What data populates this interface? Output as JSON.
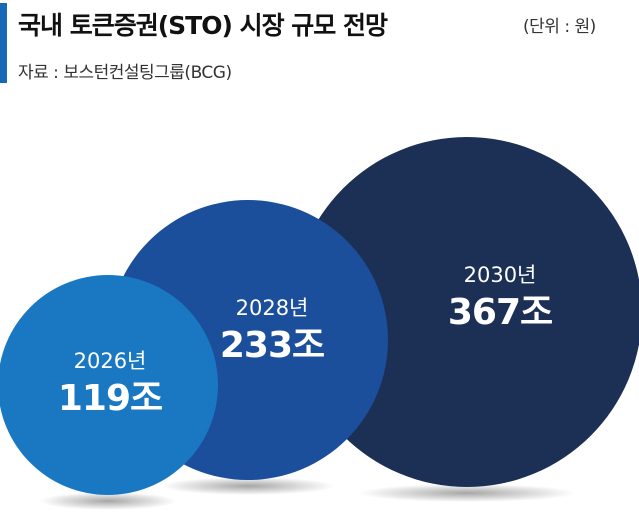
{
  "header": {
    "title": "국내 토큰증권(STO) 시장 규모 전망",
    "unit": "(단위 : 원)",
    "source": "자료 : 보스턴컨설팅그룹(BCG)"
  },
  "colors": {
    "accent": "#1769b7",
    "bubble_2026": "#1a78c2",
    "bubble_2028": "#1b4e9b",
    "bubble_2030": "#1c2f55"
  },
  "chart_data": {
    "type": "bubble",
    "title": "국내 토큰증권(STO) 시장 규모 전망",
    "unit": "(단위 : 원)",
    "categories": [
      "2026년",
      "2028년",
      "2030년"
    ],
    "values": [
      119,
      233,
      367
    ],
    "value_labels": [
      "119조",
      "233조",
      "367조"
    ],
    "value_unit": "조"
  }
}
